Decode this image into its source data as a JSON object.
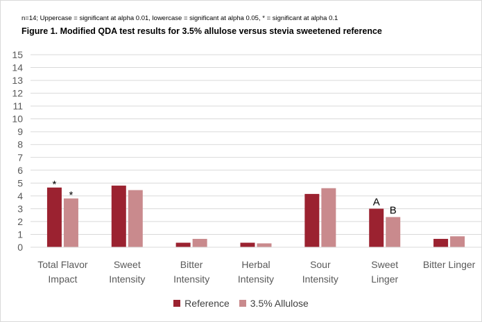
{
  "chart_data": {
    "type": "bar",
    "note": "n=14; Uppercase = significant at alpha 0.01, lowercase = significant at alpha 0.05, * = significant at alpha 0.1",
    "title": "Figure 1. Modified QDA test results for 3.5% allulose versus stevia sweetened reference",
    "xlabel": "",
    "ylabel": "",
    "ylim": [
      0,
      15
    ],
    "yticks": [
      0,
      1,
      2,
      3,
      4,
      5,
      6,
      7,
      8,
      9,
      10,
      11,
      12,
      13,
      14,
      15
    ],
    "grid": true,
    "legend_position": "bottom",
    "categories": [
      [
        "Total Flavor",
        "Impact"
      ],
      [
        "Sweet",
        "Intensity"
      ],
      [
        "Bitter",
        "Intensity"
      ],
      [
        "Herbal",
        "Intensity"
      ],
      [
        "Sour",
        "Intensity"
      ],
      [
        "Sweet",
        "Linger"
      ],
      [
        "Bitter Linger"
      ]
    ],
    "series": [
      {
        "name": "Reference",
        "color": "#9b2230",
        "values": [
          4.65,
          4.8,
          0.35,
          0.35,
          4.15,
          3.0,
          0.65
        ],
        "annotations": [
          "*",
          "",
          "",
          "",
          "",
          "A",
          ""
        ]
      },
      {
        "name": "3.5% Allulose",
        "color": "#c98a8d",
        "values": [
          3.8,
          4.45,
          0.65,
          0.3,
          4.6,
          2.35,
          0.85
        ],
        "annotations": [
          "*",
          "",
          "",
          "",
          "",
          "B",
          ""
        ]
      }
    ]
  }
}
